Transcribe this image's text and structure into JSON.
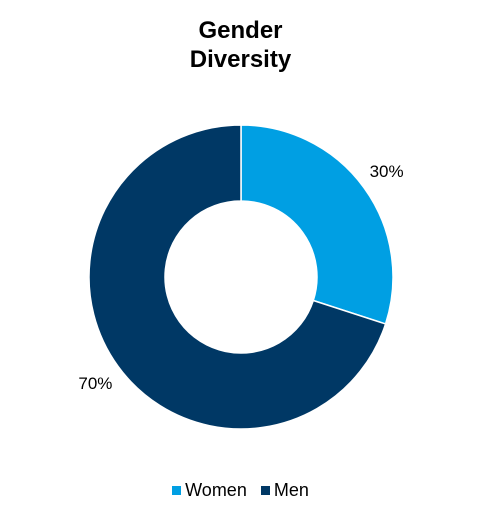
{
  "chart_data": {
    "type": "pie",
    "title_lines": [
      "Gender",
      "Diversity"
    ],
    "donut": true,
    "slices": [
      {
        "label": "Women",
        "value": 30,
        "value_label": "30%",
        "color": "#009FE3"
      },
      {
        "label": "Men",
        "value": 70,
        "value_label": "70%",
        "color": "#003865"
      }
    ],
    "start_angle": "12 o'clock",
    "direction": "clockwise",
    "legend_position": "bottom"
  }
}
